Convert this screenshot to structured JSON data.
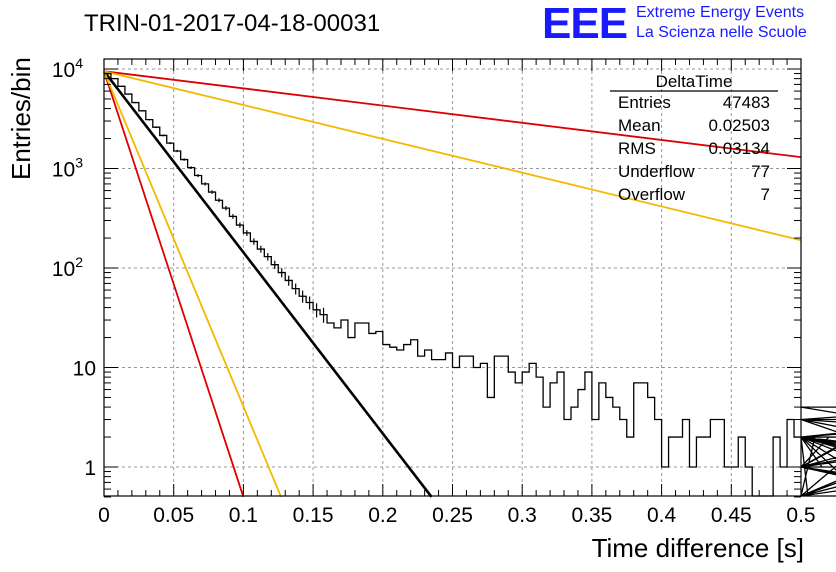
{
  "chart_data": {
    "type": "line",
    "title": "TRIN-01-2017-04-18-00031",
    "xlabel": "Time difference [s]",
    "ylabel": "Entries/bin",
    "xlim": [
      0,
      0.5
    ],
    "ylim": [
      0.5,
      15000
    ],
    "yscale": "log",
    "grid": true,
    "xticks": [
      "0",
      "0.05",
      "0.1",
      "0.15",
      "0.2",
      "0.25",
      "0.3",
      "0.35",
      "0.4",
      "0.45",
      "0.5"
    ],
    "yticks": [
      "1",
      "10",
      "10^2",
      "10^3",
      "10^4"
    ],
    "series": [
      {
        "kind": "histogram",
        "color": "#000000",
        "bin_width": 0.005,
        "x_start": 0.0,
        "values": [
          9000,
          8000,
          6700,
          5600,
          4600,
          3800,
          3100,
          2600,
          2150,
          1800,
          1500,
          1230,
          1020,
          850,
          700,
          580,
          480,
          400,
          330,
          270,
          225,
          185,
          155,
          130,
          108,
          90,
          75,
          62,
          52,
          45,
          38,
          34,
          28,
          25,
          30,
          20,
          28,
          28,
          22,
          23,
          17,
          16,
          15,
          17,
          19,
          13,
          15,
          12,
          12,
          14,
          10,
          13,
          13,
          10,
          11,
          5,
          13,
          13,
          9,
          7,
          9,
          11,
          8,
          4,
          7,
          9,
          3,
          4,
          6,
          9,
          3,
          7,
          5,
          4,
          3,
          2,
          7,
          7,
          5,
          3,
          1,
          2,
          2,
          3,
          1,
          2,
          2,
          3,
          3,
          1,
          1,
          2,
          1,
          0,
          0,
          0,
          2,
          1,
          3,
          2,
          2,
          0,
          2,
          1,
          2,
          2,
          2,
          1,
          2,
          0,
          2,
          1,
          3,
          2,
          2,
          1,
          2,
          2,
          1,
          0,
          2,
          1,
          0,
          2,
          3,
          4,
          2,
          1,
          0,
          1,
          2,
          3,
          0,
          2,
          2,
          1,
          3,
          2,
          1,
          1
        ]
      },
      {
        "kind": "fit",
        "color": "#000000",
        "x": [
          0,
          0.235
        ],
        "y": [
          9500,
          0.5
        ]
      },
      {
        "kind": "fit",
        "color": "#dd0000",
        "x": [
          0,
          0.1
        ],
        "y": [
          9500,
          0.5
        ]
      },
      {
        "kind": "fit",
        "color": "#f5b800",
        "x": [
          0,
          0.127
        ],
        "y": [
          9500,
          0.5
        ]
      },
      {
        "kind": "fit",
        "color": "#dd0000",
        "x": [
          0,
          0.5
        ],
        "y": [
          9500,
          1300
        ]
      },
      {
        "kind": "fit",
        "color": "#f5b800",
        "x": [
          0,
          0.5
        ],
        "y": [
          9500,
          190
        ]
      }
    ]
  },
  "logo": {
    "mark": "EEE",
    "line1": "Extreme Energy Events",
    "line2": "La Scienza nelle Scuole"
  },
  "stats": {
    "title": "DeltaTime",
    "rows": [
      {
        "label": "Entries",
        "value": "47483"
      },
      {
        "label": "Mean",
        "value": "0.02503"
      },
      {
        "label": "RMS",
        "value": "0.03134"
      },
      {
        "label": "Underflow",
        "value": "77"
      },
      {
        "label": "Overflow",
        "value": "7"
      }
    ]
  }
}
